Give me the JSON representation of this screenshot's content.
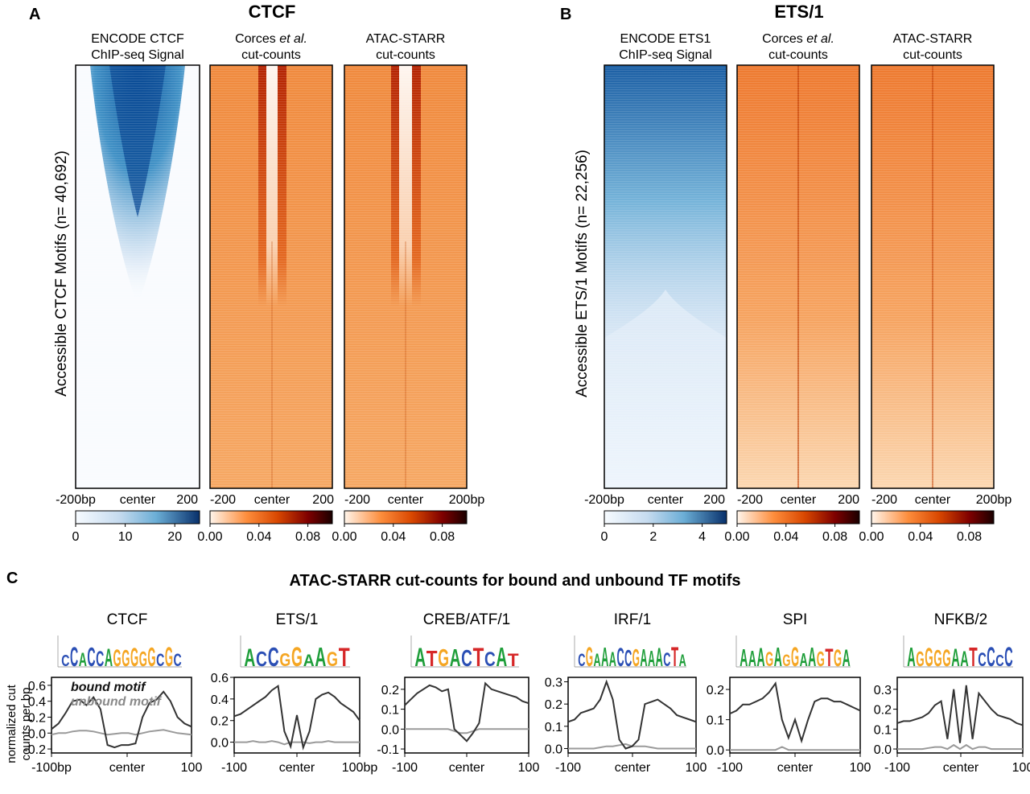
{
  "panels": {
    "a": {
      "letter": "A",
      "title": "CTCF",
      "ylabel": "Accessible CTCF Motifs (n= 40,692)",
      "heatmaps": [
        {
          "title_line1": "ENCODE CTCF",
          "title_line2": "ChIP-seq Signal",
          "palette": "blue",
          "x_ticks": [
            "-200bp",
            "center",
            "200"
          ],
          "cbar_ticks": [
            "0",
            "10",
            "20"
          ],
          "cbar_values": [
            0,
            10,
            20
          ],
          "cbar_range": [
            0,
            25
          ]
        },
        {
          "title_line1": "Corces et al.",
          "title_line2": "cut-counts",
          "palette": "orange",
          "x_ticks": [
            "-200",
            "center",
            "200"
          ],
          "cbar_ticks": [
            "0.00",
            "0.04",
            "0.08"
          ],
          "cbar_values": [
            0,
            0.04,
            0.08
          ],
          "cbar_range": [
            0,
            0.1
          ]
        },
        {
          "title_line1": "ATAC-STARR",
          "title_line2": "cut-counts",
          "palette": "orange",
          "x_ticks": [
            "-200",
            "center",
            "200bp"
          ],
          "cbar_ticks": [
            "0.00",
            "0.04",
            "0.08"
          ],
          "cbar_values": [
            0,
            0.04,
            0.08
          ],
          "cbar_range": [
            0,
            0.1
          ]
        }
      ]
    },
    "b": {
      "letter": "B",
      "title": "ETS/1",
      "ylabel": "Accessible ETS/1 Motifs (n= 22,256)",
      "heatmaps": [
        {
          "title_line1": "ENCODE ETS1",
          "title_line2": "ChIP-seq Signal",
          "palette": "blue",
          "x_ticks": [
            "-200bp",
            "center",
            "200"
          ],
          "cbar_ticks": [
            "0",
            "2",
            "4"
          ],
          "cbar_values": [
            0,
            2,
            4
          ],
          "cbar_range": [
            0,
            5
          ]
        },
        {
          "title_line1": "Corces et al.",
          "title_line2": "cut-counts",
          "palette": "orange",
          "x_ticks": [
            "-200",
            "center",
            "200"
          ],
          "cbar_ticks": [
            "0.00",
            "0.04",
            "0.08"
          ],
          "cbar_values": [
            0,
            0.04,
            0.08
          ],
          "cbar_range": [
            0,
            0.1
          ]
        },
        {
          "title_line1": "ATAC-STARR",
          "title_line2": "cut-counts",
          "palette": "orange",
          "x_ticks": [
            "-200",
            "center",
            "200bp"
          ],
          "cbar_ticks": [
            "0.00",
            "0.04",
            "0.08"
          ],
          "cbar_values": [
            0,
            0.04,
            0.08
          ],
          "cbar_range": [
            0,
            0.1
          ]
        }
      ]
    },
    "c": {
      "letter": "C",
      "title": "ATAC-STARR cut-counts for bound and unbound TF motifs",
      "ylabel_line1": "normalized cut",
      "ylabel_line2": "counts per bp",
      "legend": {
        "bound": "bound motif",
        "unbound": "unbound motif"
      }
    }
  },
  "motifs": [
    {
      "name": "CTCF",
      "letters": "CCACCAGGGGGCGC"
    },
    {
      "name": "ETS/1",
      "letters": "ACCGGAAGT"
    },
    {
      "name": "CREB/ATF/1",
      "letters": "ATGACTCAT"
    },
    {
      "name": "IRF/1",
      "letters": "CGAAACCGAAACTA"
    },
    {
      "name": "SPI",
      "letters": "AAAGAGGAAGTGA"
    },
    {
      "name": "NFKB/2",
      "letters": "AGGGGAATCCCC"
    }
  ],
  "colors": {
    "bound_line": "#333333",
    "unbound_line": "#9a9a9a",
    "A": "#1f9e3a",
    "C": "#2b4fb5",
    "G": "#f5a623",
    "T": "#d62728"
  },
  "chart_data": {
    "type": "line",
    "x": [
      -100,
      -90,
      -80,
      -70,
      -60,
      -50,
      -40,
      -30,
      -20,
      -10,
      0,
      10,
      20,
      30,
      40,
      50,
      60,
      70,
      80,
      90,
      100
    ],
    "plots": [
      {
        "motif": "CTCF",
        "ylim": [
          -0.25,
          0.7
        ],
        "yticks": [
          -0.2,
          0.0,
          0.2,
          0.4,
          0.6
        ],
        "x_ticks": [
          "-100bp",
          "center",
          "100"
        ],
        "bound": [
          0.05,
          0.12,
          0.25,
          0.4,
          0.42,
          0.35,
          0.45,
          0.3,
          -0.15,
          -0.18,
          -0.15,
          -0.15,
          -0.13,
          0.2,
          0.38,
          0.42,
          0.52,
          0.4,
          0.2,
          0.12,
          0.08
        ],
        "unbound": [
          -0.02,
          0.0,
          0.0,
          0.02,
          0.03,
          0.03,
          0.02,
          0.0,
          -0.02,
          -0.01,
          0.0,
          0.0,
          -0.02,
          0.0,
          0.02,
          0.03,
          0.04,
          0.02,
          0.0,
          -0.01,
          -0.02
        ]
      },
      {
        "motif": "ETS/1",
        "ylim": [
          -0.1,
          0.6
        ],
        "yticks": [
          0.0,
          0.2,
          0.4,
          0.6
        ],
        "x_ticks": [
          "-100",
          "center",
          "100bp"
        ],
        "bound": [
          0.24,
          0.26,
          0.3,
          0.34,
          0.38,
          0.42,
          0.48,
          0.52,
          0.1,
          -0.04,
          0.25,
          -0.05,
          0.1,
          0.4,
          0.44,
          0.46,
          0.42,
          0.36,
          0.32,
          0.28,
          0.2
        ],
        "unbound": [
          0.0,
          0.0,
          0.0,
          0.01,
          0.0,
          0.0,
          0.01,
          0.0,
          -0.02,
          0.0,
          0.0,
          0.0,
          -0.01,
          0.0,
          0.0,
          0.01,
          0.0,
          0.0,
          0.0,
          0.0,
          0.0
        ]
      },
      {
        "motif": "CREB/ATF/1",
        "ylim": [
          -0.12,
          0.26
        ],
        "yticks": [
          -0.1,
          0.0,
          0.1,
          0.2
        ],
        "x_ticks": [
          "-100",
          "center",
          "100"
        ],
        "bound": [
          0.12,
          0.15,
          0.18,
          0.2,
          0.22,
          0.21,
          0.19,
          0.2,
          0.0,
          -0.03,
          -0.06,
          -0.02,
          0.03,
          0.23,
          0.2,
          0.19,
          0.18,
          0.17,
          0.16,
          0.14,
          0.13
        ],
        "unbound": [
          0.0,
          0.0,
          0.0,
          0.0,
          0.0,
          0.0,
          0.0,
          0.0,
          -0.01,
          -0.02,
          -0.02,
          -0.01,
          0.0,
          0.0,
          0.0,
          0.0,
          0.0,
          0.0,
          0.0,
          0.0,
          0.0
        ]
      },
      {
        "motif": "IRF/1",
        "ylim": [
          -0.02,
          0.32
        ],
        "yticks": [
          0.0,
          0.1,
          0.2,
          0.3
        ],
        "x_ticks": [
          "-100",
          "center",
          "100"
        ],
        "bound": [
          0.12,
          0.13,
          0.16,
          0.17,
          0.18,
          0.22,
          0.3,
          0.22,
          0.04,
          0.0,
          0.01,
          0.04,
          0.2,
          0.21,
          0.22,
          0.2,
          0.18,
          0.15,
          0.14,
          0.13,
          0.12
        ],
        "unbound": [
          0.0,
          0.0,
          0.0,
          0.0,
          0.0,
          0.005,
          0.01,
          0.01,
          0.015,
          0.02,
          0.01,
          0.01,
          0.01,
          0.005,
          0.0,
          0.0,
          0.0,
          0.0,
          0.0,
          0.0,
          0.0
        ]
      },
      {
        "motif": "SPI",
        "ylim": [
          -0.01,
          0.24
        ],
        "yticks": [
          0.0,
          0.1,
          0.2
        ],
        "x_ticks": [
          "-100",
          "center",
          "100"
        ],
        "bound": [
          0.12,
          0.13,
          0.15,
          0.15,
          0.16,
          0.17,
          0.19,
          0.22,
          0.1,
          0.04,
          0.1,
          0.03,
          0.1,
          0.16,
          0.17,
          0.17,
          0.16,
          0.16,
          0.15,
          0.14,
          0.13
        ],
        "unbound": [
          0.0,
          0.0,
          0.0,
          0.0,
          0.0,
          0.0,
          0.0,
          0.0,
          0.01,
          0.0,
          0.0,
          0.0,
          0.0,
          0.0,
          0.0,
          0.0,
          0.0,
          0.0,
          0.0,
          0.0,
          0.0
        ]
      },
      {
        "motif": "NFKB/2",
        "ylim": [
          -0.02,
          0.36
        ],
        "yticks": [
          0.0,
          0.1,
          0.2,
          0.3
        ],
        "x_ticks": [
          "-100",
          "center",
          "100"
        ],
        "bound": [
          0.13,
          0.14,
          0.14,
          0.15,
          0.16,
          0.18,
          0.22,
          0.24,
          0.05,
          0.3,
          0.03,
          0.32,
          0.05,
          0.28,
          0.24,
          0.2,
          0.17,
          0.16,
          0.15,
          0.13,
          0.12
        ],
        "unbound": [
          0.0,
          0.0,
          0.0,
          0.0,
          0.0,
          0.005,
          0.01,
          0.01,
          0.0,
          0.02,
          0.0,
          0.02,
          0.0,
          0.01,
          0.01,
          0.0,
          0.0,
          0.0,
          0.0,
          0.0,
          0.0
        ]
      }
    ]
  }
}
